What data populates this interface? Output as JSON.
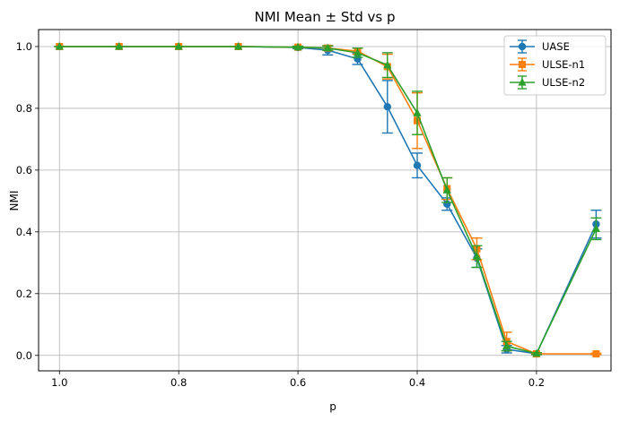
{
  "chart_data": {
    "type": "line",
    "title": "NMI Mean ± Std vs p",
    "xlabel": "p",
    "ylabel": "NMI",
    "x_reversed": true,
    "xlim": [
      1.035,
      0.075
    ],
    "ylim": [
      -0.05,
      1.055
    ],
    "xticks": [
      1.0,
      0.8,
      0.6,
      0.4,
      0.2
    ],
    "xtick_labels": [
      "1.0",
      "0.8",
      "0.6",
      "0.4",
      "0.2"
    ],
    "yticks": [
      0.0,
      0.2,
      0.4,
      0.6,
      0.8,
      1.0
    ],
    "ytick_labels": [
      "0.0",
      "0.2",
      "0.4",
      "0.6",
      "0.8",
      "1.0"
    ],
    "grid": true,
    "legend_position": "top-right",
    "series": [
      {
        "name": "UASE",
        "color": "#1f77b4",
        "marker": "circle",
        "x": [
          1.0,
          0.9,
          0.8,
          0.7,
          0.6,
          0.55,
          0.5,
          0.45,
          0.4,
          0.35,
          0.3,
          0.25,
          0.2,
          0.1
        ],
        "y": [
          1.0,
          1.0,
          1.0,
          1.0,
          0.997,
          0.988,
          0.96,
          0.805,
          0.615,
          0.49,
          0.315,
          0.02,
          0.005,
          0.425
        ],
        "err": [
          0.0,
          0.0,
          0.0,
          0.0,
          0.004,
          0.015,
          0.018,
          0.085,
          0.04,
          0.02,
          0.03,
          0.012,
          0.002,
          0.045
        ]
      },
      {
        "name": "ULSE-n1",
        "color": "#ff7f0e",
        "marker": "square",
        "x": [
          1.0,
          0.9,
          0.8,
          0.7,
          0.6,
          0.55,
          0.5,
          0.45,
          0.4,
          0.35,
          0.3,
          0.25,
          0.2,
          0.1
        ],
        "y": [
          1.0,
          1.0,
          1.0,
          1.0,
          0.998,
          0.995,
          0.985,
          0.935,
          0.76,
          0.54,
          0.345,
          0.045,
          0.005,
          0.005
        ],
        "err": [
          0.0,
          0.0,
          0.0,
          0.0,
          0.003,
          0.008,
          0.01,
          0.04,
          0.09,
          0.035,
          0.035,
          0.03,
          0.002,
          0.002
        ]
      },
      {
        "name": "ULSE-n2",
        "color": "#2ca02c",
        "marker": "triangle",
        "x": [
          1.0,
          0.9,
          0.8,
          0.7,
          0.6,
          0.55,
          0.5,
          0.45,
          0.4,
          0.35,
          0.3,
          0.25,
          0.2,
          0.1
        ],
        "y": [
          1.0,
          1.0,
          1.0,
          1.0,
          0.998,
          0.995,
          0.98,
          0.94,
          0.785,
          0.535,
          0.32,
          0.03,
          0.006,
          0.41
        ],
        "err": [
          0.0,
          0.0,
          0.0,
          0.0,
          0.003,
          0.007,
          0.015,
          0.04,
          0.07,
          0.04,
          0.035,
          0.015,
          0.003,
          0.035
        ]
      }
    ]
  }
}
